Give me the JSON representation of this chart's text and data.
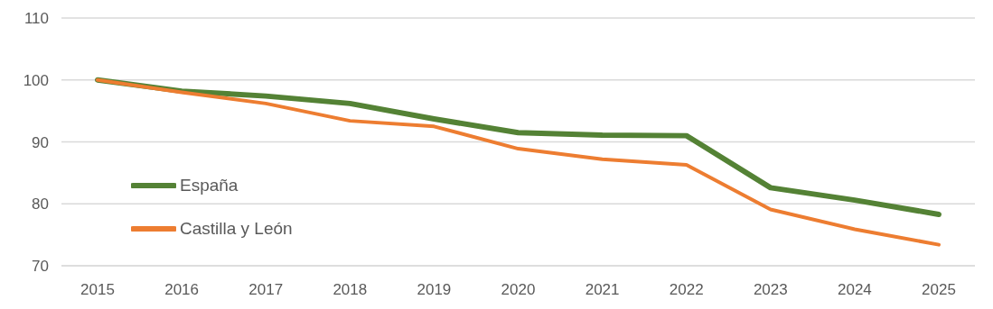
{
  "chart_data": {
    "type": "line",
    "categories": [
      "2015",
      "2016",
      "2017",
      "2018",
      "2019",
      "2020",
      "2021",
      "2022",
      "2023",
      "2024",
      "2025"
    ],
    "series": [
      {
        "name": "España",
        "color": "#548235",
        "values": [
          100,
          98.2,
          97.4,
          96.2,
          93.7,
          91.5,
          91.1,
          91.0,
          82.6,
          80.6,
          78.3
        ]
      },
      {
        "name": "Castilla y León",
        "color": "#ed7d31",
        "values": [
          100,
          98.0,
          96.2,
          93.4,
          92.5,
          88.9,
          87.2,
          86.3,
          79.1,
          75.9,
          73.4
        ]
      }
    ],
    "ylim": [
      70,
      110
    ],
    "yticks": [
      70,
      80,
      90,
      100,
      110
    ],
    "grid": "y",
    "legend": "left",
    "marker": "none",
    "line_style": "solid"
  }
}
